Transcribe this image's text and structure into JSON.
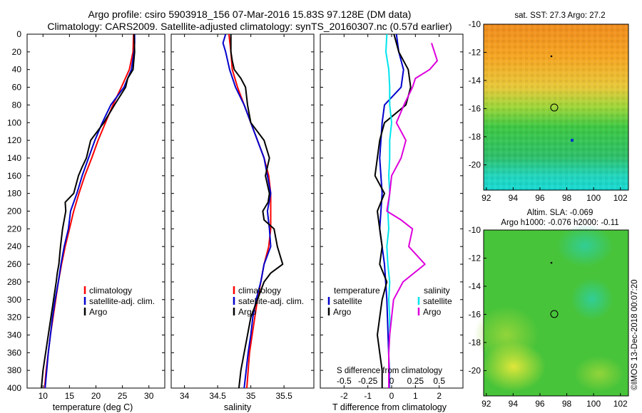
{
  "header": {
    "title_line1": "Argo profile: csiro 5903918_156 07-Mar-2016 15.83S 97.128E (DM data)",
    "title_line2": "Climatology: CARS2009. Satellite-adjusted climatology: synTS_20160307.nc (0.57d earlier)"
  },
  "colors": {
    "climatology": "#ff0000",
    "satellite": "#0000cc",
    "argo": "#000000",
    "salinity_satellite": "#00e5ee",
    "salinity_argo": "#dd00dd"
  },
  "map_sst": {
    "title": "sat. SST: 27.3 Argo: 27.2",
    "x_ticks": [
      "92",
      "94",
      "96",
      "98",
      "100",
      "102"
    ],
    "y_ticks": [
      "-10",
      "-12",
      "-14",
      "-16",
      "-18",
      "-20"
    ]
  },
  "map_sla": {
    "title1": "Altim. SLA: -0.069",
    "title2": "Argo h1000: -0.076 h2000: -0.11",
    "x_ticks": [
      "92",
      "94",
      "96",
      "98",
      "100",
      "102"
    ],
    "y_ticks": [
      "-10",
      "-12",
      "-14",
      "-16",
      "-18",
      "-20"
    ]
  },
  "credit": "©IMOS 13-Dec-2018 00:07:20",
  "chart_data": [
    {
      "type": "line",
      "title": "",
      "xlabel": "temperature (deg C)",
      "ylabel": "",
      "xlim": [
        7,
        33
      ],
      "ylim": [
        400,
        0
      ],
      "x_ticks": [
        "10",
        "15",
        "20",
        "25",
        "30"
      ],
      "y_ticks": [
        "0",
        "20",
        "40",
        "60",
        "80",
        "100",
        "120",
        "140",
        "160",
        "180",
        "200",
        "220",
        "240",
        "260",
        "280",
        "300",
        "320",
        "340",
        "360",
        "380",
        "400"
      ],
      "legend": [
        "climatology",
        "satellite-adj. clim.",
        "Argo"
      ],
      "series": [
        {
          "name": "climatology",
          "depth": [
            0,
            20,
            40,
            60,
            80,
            100,
            120,
            140,
            160,
            180,
            200,
            220,
            240,
            260,
            280,
            300,
            320,
            340,
            360,
            380,
            400
          ],
          "values": [
            27.1,
            27.0,
            26.3,
            24.8,
            23.2,
            21.8,
            20.4,
            19.2,
            17.9,
            16.8,
            15.8,
            15.0,
            14.2,
            13.5,
            12.9,
            12.4,
            11.9,
            11.4,
            11.0,
            10.6,
            10.3
          ]
        },
        {
          "name": "satellite-adj. clim.",
          "depth": [
            0,
            10,
            20,
            40,
            60,
            80,
            100,
            120,
            140,
            160,
            180,
            200,
            220,
            240,
            260,
            280,
            300,
            320,
            340,
            360,
            380,
            400
          ],
          "values": [
            27.3,
            27.3,
            27.2,
            26.7,
            25.3,
            22.8,
            21.2,
            19.8,
            18.6,
            17.4,
            16.4,
            15.2,
            14.8,
            14.0,
            13.4,
            12.9,
            12.3,
            11.8,
            11.4,
            11.0,
            10.7,
            10.4
          ]
        },
        {
          "name": "Argo",
          "depth": [
            0,
            20,
            40,
            50,
            60,
            80,
            100,
            120,
            140,
            150,
            160,
            180,
            190,
            200,
            220,
            240,
            260,
            270,
            280,
            300,
            320,
            340,
            360,
            380,
            400
          ],
          "values": [
            27.2,
            27.3,
            27.0,
            26.0,
            25.6,
            23.5,
            21.5,
            19.0,
            18.2,
            17.4,
            16.7,
            15.8,
            14.2,
            14.3,
            13.7,
            13.3,
            13.0,
            12.7,
            12.5,
            12.0,
            11.5,
            11.0,
            10.5,
            10.0,
            9.7
          ]
        }
      ]
    },
    {
      "type": "line",
      "title": "",
      "xlabel": "salinity",
      "ylabel": "",
      "xlim": [
        33.8,
        35.95
      ],
      "ylim": [
        400,
        0
      ],
      "x_ticks": [
        "34",
        "34.5",
        "35",
        "35.5"
      ],
      "legend": [
        "climatology",
        "satellite-adj. clim.",
        "Argo"
      ],
      "series": [
        {
          "name": "climatology",
          "depth": [
            0,
            20,
            40,
            60,
            80,
            100,
            120,
            140,
            160,
            180,
            200,
            220,
            240,
            260,
            280,
            300,
            320,
            340,
            360,
            380,
            400
          ],
          "values": [
            34.67,
            34.7,
            34.72,
            34.8,
            34.9,
            35.0,
            35.1,
            35.2,
            35.27,
            35.3,
            35.3,
            35.3,
            35.27,
            35.2,
            35.15,
            35.1,
            35.06,
            35.02,
            34.98,
            34.96,
            34.94
          ]
        },
        {
          "name": "satellite-adj. clim.",
          "depth": [
            0,
            10,
            20,
            40,
            60,
            80,
            100,
            120,
            140,
            160,
            180,
            200,
            220,
            240,
            260,
            280,
            300,
            320,
            340,
            360,
            380,
            400
          ],
          "values": [
            34.62,
            34.58,
            34.62,
            34.68,
            34.77,
            34.9,
            35.0,
            35.1,
            35.2,
            35.25,
            35.3,
            35.25,
            35.28,
            35.3,
            35.2,
            35.15,
            35.08,
            35.03,
            35.0,
            34.96,
            34.93,
            34.9
          ]
        },
        {
          "name": "Argo",
          "depth": [
            0,
            20,
            30,
            40,
            50,
            60,
            80,
            100,
            120,
            140,
            160,
            180,
            190,
            200,
            210,
            220,
            240,
            260,
            270,
            280,
            300,
            320,
            340,
            360,
            380,
            400
          ],
          "values": [
            34.7,
            34.7,
            34.72,
            34.75,
            34.85,
            34.92,
            34.95,
            35.0,
            35.2,
            35.28,
            35.22,
            35.28,
            35.26,
            35.18,
            35.2,
            35.35,
            35.4,
            35.48,
            35.3,
            35.2,
            35.1,
            35.0,
            34.95,
            34.9,
            34.85,
            34.82
          ]
        }
      ]
    },
    {
      "type": "line",
      "title": "",
      "xlabel": "T difference from climatology",
      "xlabel2": "S difference from climatology",
      "ylabel": "",
      "xlim": [
        -3,
        3
      ],
      "ylim": [
        400,
        0
      ],
      "x_ticks": [
        "-2",
        "-1",
        "0",
        "1",
        "2"
      ],
      "x_ticks_salinity": [
        "-0.5",
        "-0.25",
        "0",
        "0.25",
        "0.5"
      ],
      "legend_temperature_title": "temperature",
      "legend_salinity_title": "salinity",
      "legend_temperature": [
        "satellite",
        "Argo"
      ],
      "legend_salinity": [
        "satellite",
        "Argo"
      ],
      "series": [
        {
          "name": "temperature satellite",
          "depth": [
            0,
            20,
            40,
            60,
            80,
            100,
            140,
            180,
            220,
            260,
            300,
            340,
            380,
            400
          ],
          "values": [
            0.2,
            0.3,
            0.5,
            0.4,
            -0.3,
            -0.4,
            -0.5,
            -0.4,
            -0.5,
            -0.3,
            -0.2,
            -0.15,
            -0.1,
            -0.1
          ]
        },
        {
          "name": "temperature Argo",
          "depth": [
            0,
            20,
            40,
            60,
            80,
            100,
            120,
            140,
            160,
            180,
            200,
            220,
            240,
            260,
            280,
            300,
            320,
            340,
            360,
            380,
            400
          ],
          "values": [
            0.1,
            0.3,
            0.7,
            0.8,
            0.6,
            -0.3,
            -0.5,
            -0.6,
            -0.7,
            -0.3,
            -0.6,
            -0.5,
            -0.4,
            -0.5,
            -0.2,
            -0.4,
            -0.5,
            -0.6,
            -0.5,
            -0.4,
            -0.4
          ]
        },
        {
          "name": "salinity satellite",
          "depth": [
            0,
            20,
            40,
            60,
            80,
            100,
            120,
            140,
            160,
            180,
            200,
            220,
            240,
            260,
            280,
            300,
            320,
            340,
            360,
            380,
            400
          ],
          "values": [
            -0.05,
            -0.06,
            -0.03,
            -0.02,
            -0.02,
            0.0,
            -0.02,
            -0.02,
            -0.03,
            -0.02,
            -0.04,
            -0.03,
            -0.05,
            -0.04,
            -0.02,
            -0.03,
            -0.02,
            -0.02,
            -0.03,
            -0.03,
            -0.03
          ]
        },
        {
          "name": "salinity Argo",
          "depth": [
            10,
            20,
            30,
            40,
            50,
            60,
            80,
            100,
            120,
            140,
            160,
            180,
            200,
            210,
            220,
            240,
            260,
            280,
            300,
            320,
            340,
            360,
            380,
            400
          ],
          "values": [
            0.42,
            0.45,
            0.48,
            0.4,
            0.25,
            0.22,
            0.13,
            0.05,
            0.15,
            0.1,
            0.0,
            -0.02,
            -0.05,
            0.1,
            0.22,
            0.18,
            0.35,
            0.12,
            0.02,
            0.0,
            -0.02,
            -0.03,
            -0.03,
            -0.03
          ]
        }
      ]
    }
  ]
}
